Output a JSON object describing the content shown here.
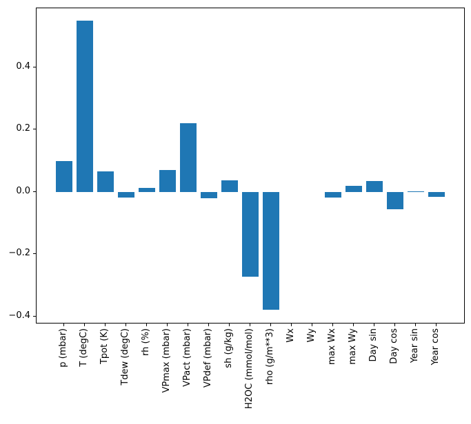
{
  "chart_data": {
    "type": "bar",
    "title": "",
    "xlabel": "",
    "ylabel": "",
    "categories": [
      "p (mbar)",
      "T (degC)",
      "Tpot (K)",
      "Tdew (degC)",
      "rh (%)",
      "VPmax (mbar)",
      "VPact (mbar)",
      "VPdef (mbar)",
      "sh (g/kg)",
      "H2OC (mmol/mol)",
      "rho (g/m**3)",
      "Wx",
      "Wy",
      "max Wx",
      "max Wy",
      "Day sin",
      "Day cos",
      "Year sin",
      "Year cos"
    ],
    "values": [
      0.1,
      0.55,
      0.066,
      -0.018,
      0.013,
      0.07,
      0.22,
      -0.021,
      0.037,
      -0.273,
      -0.378,
      0.0,
      0.0,
      -0.018,
      0.019,
      0.036,
      -0.056,
      0.003,
      -0.015
    ],
    "yticks": [
      0.4,
      0.2,
      0.0,
      -0.2,
      -0.4
    ],
    "ytick_labels": [
      "0.4",
      "0.2",
      "0.0",
      "−0.2",
      "−0.4"
    ],
    "ylim": [
      -0.42,
      0.59
    ],
    "xlim": [
      -1.34,
      19.34
    ],
    "bar_width": 0.8,
    "x_tick_rotation": 90,
    "grid": false,
    "legend": null,
    "bar_color": "#1f77b4",
    "axis_color": "#000000",
    "background_color": "#ffffff"
  }
}
